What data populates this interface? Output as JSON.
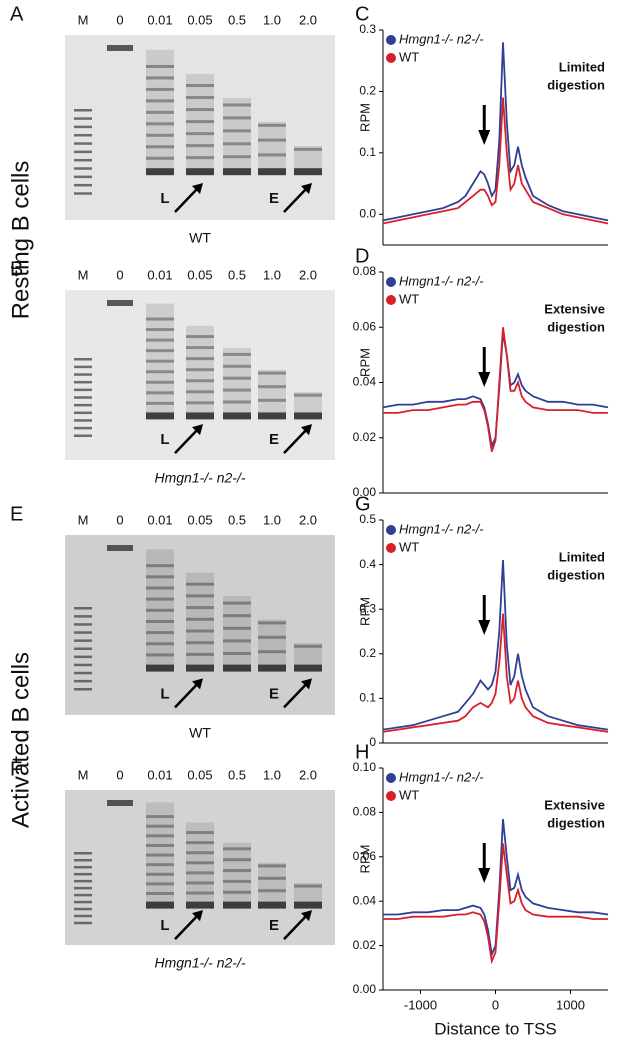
{
  "row_labels": [
    "Resting B cells",
    "Activated B cells"
  ],
  "gels": [
    {
      "panel": "A",
      "lanes": [
        "M",
        "0",
        "0.01",
        "0.05",
        "0.5",
        "1.0",
        "2.0"
      ],
      "markers": [
        "L",
        "E"
      ],
      "caption": "WT"
    },
    {
      "panel": "B",
      "lanes": [
        "M",
        "0",
        "0.01",
        "0.05",
        "0.5",
        "1.0",
        "2.0"
      ],
      "markers": [
        "L",
        "E"
      ],
      "caption": "Hmgn1-/- n2-/-"
    },
    {
      "panel": "E",
      "lanes": [
        "M",
        "0",
        "0.01",
        "0.05",
        "0.5",
        "1.0",
        "2.0"
      ],
      "markers": [
        "L",
        "E"
      ],
      "caption": "WT"
    },
    {
      "panel": "F",
      "lanes": [
        "M",
        "0",
        "0.01",
        "0.05",
        "0.5",
        "1.0",
        "2.0"
      ],
      "markers": [
        "L",
        "E"
      ],
      "caption": "Hmgn1-/- n2-/-"
    }
  ],
  "chart_data": [
    {
      "type": "line",
      "panel": "C",
      "ylabel": "RPM",
      "annotation": [
        "Limited",
        "digestion"
      ],
      "x": [
        -1500,
        -1300,
        -1100,
        -900,
        -700,
        -500,
        -400,
        -300,
        -200,
        -150,
        -100,
        -50,
        0,
        50,
        100,
        150,
        200,
        250,
        300,
        350,
        400,
        500,
        700,
        900,
        1100,
        1300,
        1500
      ],
      "xlim": [
        -1500,
        1500
      ],
      "ylim": [
        -0.05,
        0.3
      ],
      "yticks": [
        {
          "value": 0,
          "label": "0.0"
        },
        0.1,
        0.2,
        0.3
      ],
      "series": [
        {
          "name": "Hmgn1-/- n2-/-",
          "color": "#2e3f96",
          "values": [
            -0.01,
            -0.005,
            0,
            0.005,
            0.01,
            0.02,
            0.03,
            0.05,
            0.07,
            0.065,
            0.05,
            0.03,
            0.04,
            0.12,
            0.28,
            0.15,
            0.07,
            0.08,
            0.11,
            0.08,
            0.06,
            0.03,
            0.015,
            0.005,
            0,
            -0.005,
            -0.01
          ]
        },
        {
          "name": "WT",
          "color": "#d7202a",
          "values": [
            -0.015,
            -0.01,
            -0.005,
            0,
            0.005,
            0.01,
            0.02,
            0.03,
            0.04,
            0.04,
            0.03,
            0.015,
            0.02,
            0.08,
            0.19,
            0.1,
            0.04,
            0.05,
            0.08,
            0.05,
            0.04,
            0.02,
            0.01,
            0,
            -0.005,
            -0.01,
            -0.015
          ]
        }
      ]
    },
    {
      "type": "line",
      "panel": "D",
      "ylabel": "RPM",
      "annotation": [
        "Extensive",
        "digestion"
      ],
      "x": [
        -1500,
        -1300,
        -1100,
        -900,
        -700,
        -500,
        -400,
        -300,
        -200,
        -150,
        -100,
        -50,
        0,
        50,
        100,
        150,
        200,
        250,
        300,
        350,
        400,
        500,
        700,
        900,
        1100,
        1300,
        1500
      ],
      "xlim": [
        -1500,
        1500
      ],
      "ylim": [
        0,
        0.08
      ],
      "yticks": [
        {
          "value": 0,
          "label": "0.00"
        },
        0.02,
        0.04,
        0.06,
        0.08
      ],
      "series": [
        {
          "name": "Hmgn1-/- n2-/-",
          "color": "#2e3f96",
          "values": [
            0.031,
            0.032,
            0.032,
            0.033,
            0.033,
            0.034,
            0.034,
            0.035,
            0.034,
            0.031,
            0.025,
            0.017,
            0.02,
            0.038,
            0.058,
            0.05,
            0.039,
            0.04,
            0.043,
            0.039,
            0.037,
            0.035,
            0.033,
            0.033,
            0.032,
            0.032,
            0.031
          ]
        },
        {
          "name": "WT",
          "color": "#d7202a",
          "values": [
            0.029,
            0.029,
            0.03,
            0.03,
            0.031,
            0.032,
            0.032,
            0.033,
            0.033,
            0.03,
            0.024,
            0.015,
            0.019,
            0.04,
            0.06,
            0.05,
            0.037,
            0.037,
            0.04,
            0.035,
            0.033,
            0.031,
            0.03,
            0.03,
            0.03,
            0.029,
            0.029
          ]
        }
      ]
    },
    {
      "type": "line",
      "panel": "G",
      "ylabel": "RPM",
      "annotation": [
        "Limited",
        "digestion"
      ],
      "x": [
        -1500,
        -1300,
        -1100,
        -900,
        -700,
        -500,
        -400,
        -300,
        -200,
        -150,
        -100,
        -50,
        0,
        50,
        100,
        150,
        200,
        250,
        300,
        350,
        400,
        500,
        700,
        900,
        1100,
        1300,
        1500
      ],
      "xlim": [
        -1500,
        1500
      ],
      "ylim": [
        0,
        0.5
      ],
      "yticks": [
        0,
        0.1,
        0.2,
        0.3,
        0.4,
        0.5
      ],
      "series": [
        {
          "name": "Hmgn1-/- n2-/-",
          "color": "#2e3f96",
          "values": [
            0.03,
            0.035,
            0.04,
            0.05,
            0.06,
            0.07,
            0.09,
            0.11,
            0.14,
            0.13,
            0.12,
            0.13,
            0.16,
            0.25,
            0.41,
            0.22,
            0.13,
            0.15,
            0.2,
            0.15,
            0.12,
            0.08,
            0.06,
            0.05,
            0.04,
            0.035,
            0.03
          ]
        },
        {
          "name": "WT",
          "color": "#d7202a",
          "values": [
            0.025,
            0.03,
            0.035,
            0.04,
            0.045,
            0.05,
            0.06,
            0.08,
            0.09,
            0.085,
            0.08,
            0.09,
            0.11,
            0.18,
            0.29,
            0.15,
            0.09,
            0.1,
            0.14,
            0.1,
            0.08,
            0.06,
            0.045,
            0.04,
            0.035,
            0.03,
            0.025
          ]
        }
      ]
    },
    {
      "type": "line",
      "panel": "H",
      "ylabel": "RPM",
      "xlabel": "Distance to TSS",
      "annotation": [
        "Extensive",
        "digestion"
      ],
      "x": [
        -1500,
        -1300,
        -1100,
        -900,
        -700,
        -500,
        -400,
        -300,
        -200,
        -150,
        -100,
        -50,
        0,
        50,
        100,
        150,
        200,
        250,
        300,
        350,
        400,
        500,
        700,
        900,
        1100,
        1300,
        1500
      ],
      "xlim": [
        -1500,
        1500
      ],
      "ylim": [
        0,
        0.1
      ],
      "xticks": [
        -1000,
        0,
        1000
      ],
      "yticks": [
        {
          "value": 0,
          "label": "0.00"
        },
        0.02,
        0.04,
        0.06,
        0.08,
        {
          "value": 0.1,
          "label": "0.10"
        }
      ],
      "series": [
        {
          "name": "Hmgn1-/- n2-/-",
          "color": "#2e3f96",
          "values": [
            0.034,
            0.034,
            0.035,
            0.035,
            0.036,
            0.036,
            0.037,
            0.038,
            0.037,
            0.034,
            0.027,
            0.016,
            0.02,
            0.045,
            0.077,
            0.06,
            0.045,
            0.046,
            0.052,
            0.045,
            0.042,
            0.039,
            0.037,
            0.036,
            0.035,
            0.035,
            0.034
          ]
        },
        {
          "name": "WT",
          "color": "#d7202a",
          "values": [
            0.032,
            0.032,
            0.033,
            0.033,
            0.033,
            0.034,
            0.034,
            0.035,
            0.034,
            0.031,
            0.024,
            0.013,
            0.017,
            0.04,
            0.066,
            0.052,
            0.039,
            0.04,
            0.045,
            0.039,
            0.036,
            0.034,
            0.033,
            0.033,
            0.033,
            0.032,
            0.032
          ]
        }
      ]
    }
  ]
}
